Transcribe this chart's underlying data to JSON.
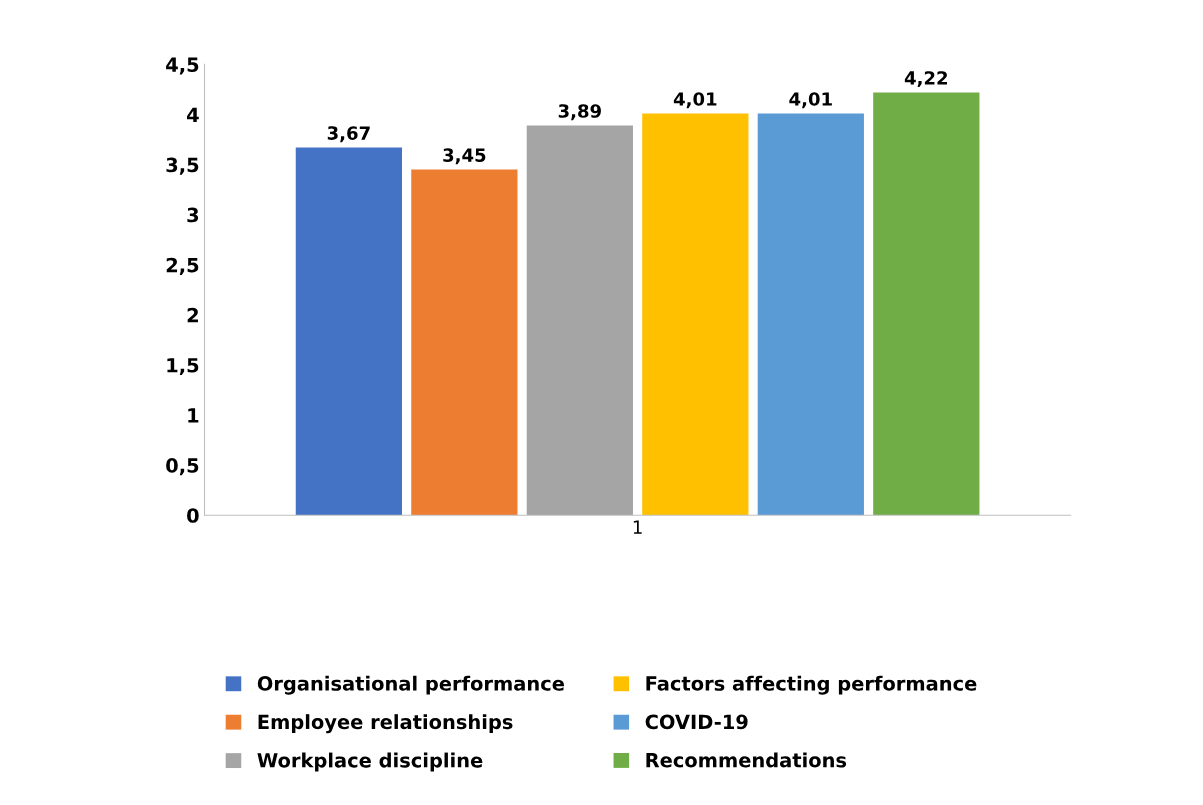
{
  "chart_data": {
    "type": "bar",
    "categories": [
      "1"
    ],
    "series": [
      {
        "name": "Organisational performance",
        "color": "#4472c4",
        "values": [
          3.67
        ],
        "value_labels": [
          "3,67"
        ]
      },
      {
        "name": "Employee relationships",
        "color": "#ed7d31",
        "values": [
          3.45
        ],
        "value_labels": [
          "3,45"
        ]
      },
      {
        "name": "Workplace discipline",
        "color": "#a5a5a5",
        "values": [
          3.89
        ],
        "value_labels": [
          "3,89"
        ]
      },
      {
        "name": "Factors affecting performance",
        "color": "#ffc000",
        "values": [
          4.01
        ],
        "value_labels": [
          "4,01"
        ]
      },
      {
        "name": "COVID-19",
        "color": "#5b9bd5",
        "values": [
          4.01
        ],
        "value_labels": [
          "4,01"
        ]
      },
      {
        "name": "Recommendations",
        "color": "#70ad47",
        "values": [
          4.22
        ],
        "value_labels": [
          "4,22"
        ]
      }
    ],
    "ylim": [
      0,
      4.5
    ],
    "yticks": [
      0,
      {
        "value": 0.5,
        "label": "0,5"
      },
      1,
      {
        "value": 1.5,
        "label": "1,5"
      },
      2,
      {
        "value": 2.5,
        "label": "2,5"
      },
      3,
      {
        "value": 3.5,
        "label": "3,5"
      },
      4,
      {
        "value": 4.5,
        "label": "4,5"
      }
    ],
    "grid": false,
    "legend": "bottom"
  }
}
